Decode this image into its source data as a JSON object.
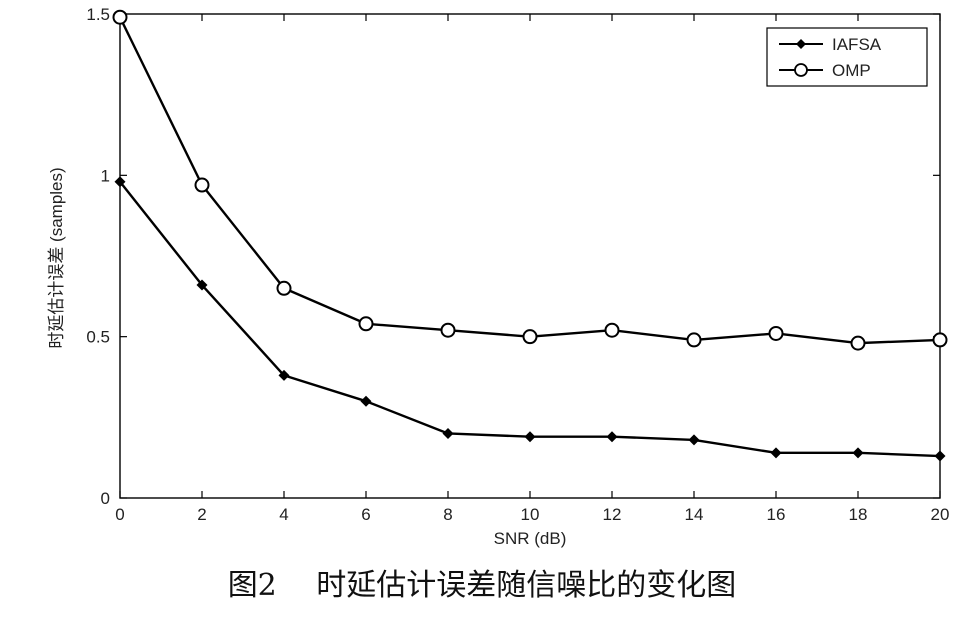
{
  "caption": "图2　 时延估计误差随信噪比的变化图",
  "chart_data": {
    "type": "line",
    "title": "",
    "xlabel": "SNR (dB)",
    "ylabel": "时延估计误差 (samples)",
    "xlim": [
      0,
      20
    ],
    "ylim": [
      0,
      1.5
    ],
    "x": [
      0,
      2,
      4,
      6,
      8,
      10,
      12,
      14,
      16,
      18,
      20
    ],
    "x_ticks": [
      "0",
      "2",
      "4",
      "6",
      "8",
      "10",
      "12",
      "14",
      "16",
      "18",
      "20"
    ],
    "y_ticks": [
      "0",
      "0.5",
      "1",
      "1.5"
    ],
    "y_tick_values": [
      0,
      0.5,
      1,
      1.5
    ],
    "grid": false,
    "legend_position": "top-right",
    "series": [
      {
        "name": "IAFSA",
        "marker": "diamond",
        "color": "#000000",
        "values": [
          0.98,
          0.66,
          0.38,
          0.3,
          0.2,
          0.19,
          0.19,
          0.18,
          0.14,
          0.14,
          0.13
        ]
      },
      {
        "name": "OMP",
        "marker": "circle",
        "color": "#000000",
        "values": [
          1.49,
          0.97,
          0.65,
          0.54,
          0.52,
          0.5,
          0.52,
          0.49,
          0.51,
          0.48,
          0.49
        ]
      }
    ]
  }
}
